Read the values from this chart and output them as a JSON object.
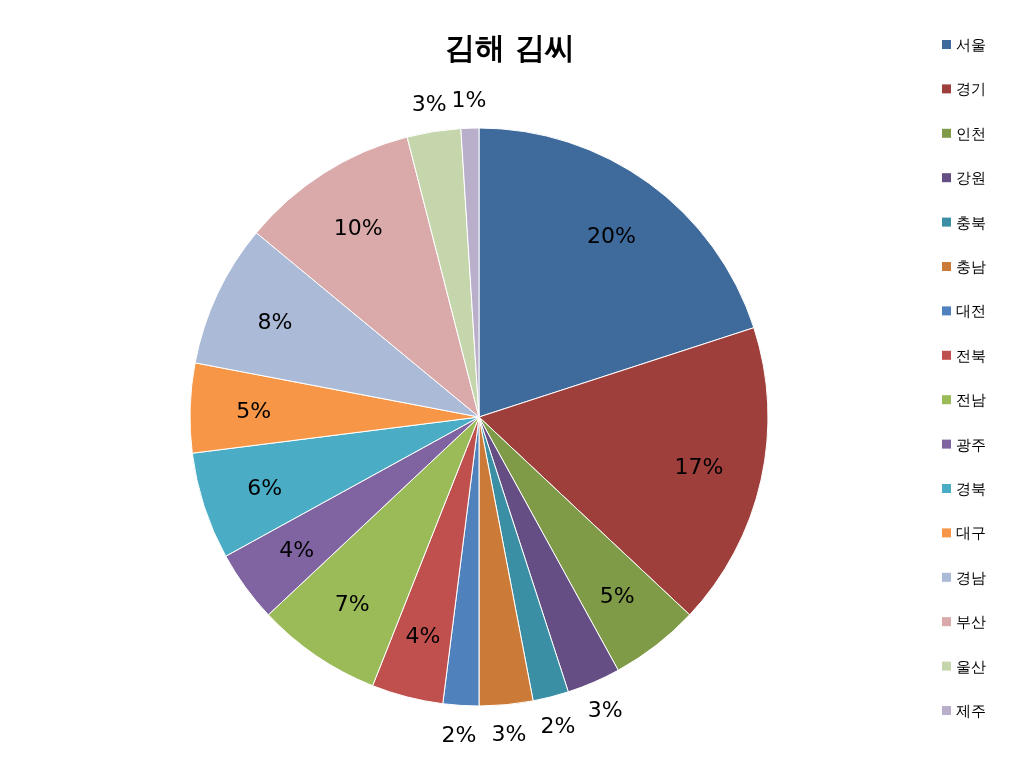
{
  "chart_data": {
    "type": "pie",
    "title": "김해 김씨",
    "categories": [
      "서울",
      "경기",
      "인천",
      "강원",
      "충북",
      "충남",
      "대전",
      "전북",
      "전남",
      "광주",
      "경북",
      "대구",
      "경남",
      "부산",
      "울산",
      "제주"
    ],
    "values": [
      20,
      17,
      5,
      3,
      2,
      3,
      2,
      4,
      7,
      4,
      6,
      5,
      8,
      10,
      3,
      1
    ],
    "value_labels": [
      "20%",
      "17%",
      "5%",
      "3%",
      "2%",
      "3%",
      "2%",
      "4%",
      "7%",
      "4%",
      "6%",
      "5%",
      "8%",
      "10%",
      "3%",
      "1%"
    ],
    "colors": [
      "#3e6a9c",
      "#9e3f3c",
      "#7f9b48",
      "#644e84",
      "#3a8fa5",
      "#cc7a37",
      "#4f81bd",
      "#c0504d",
      "#9bbb59",
      "#8064a2",
      "#4bacc6",
      "#f79646",
      "#aabad7",
      "#d9aaa9",
      "#c6d6ac",
      "#b9afcb"
    ],
    "legend": "right"
  }
}
